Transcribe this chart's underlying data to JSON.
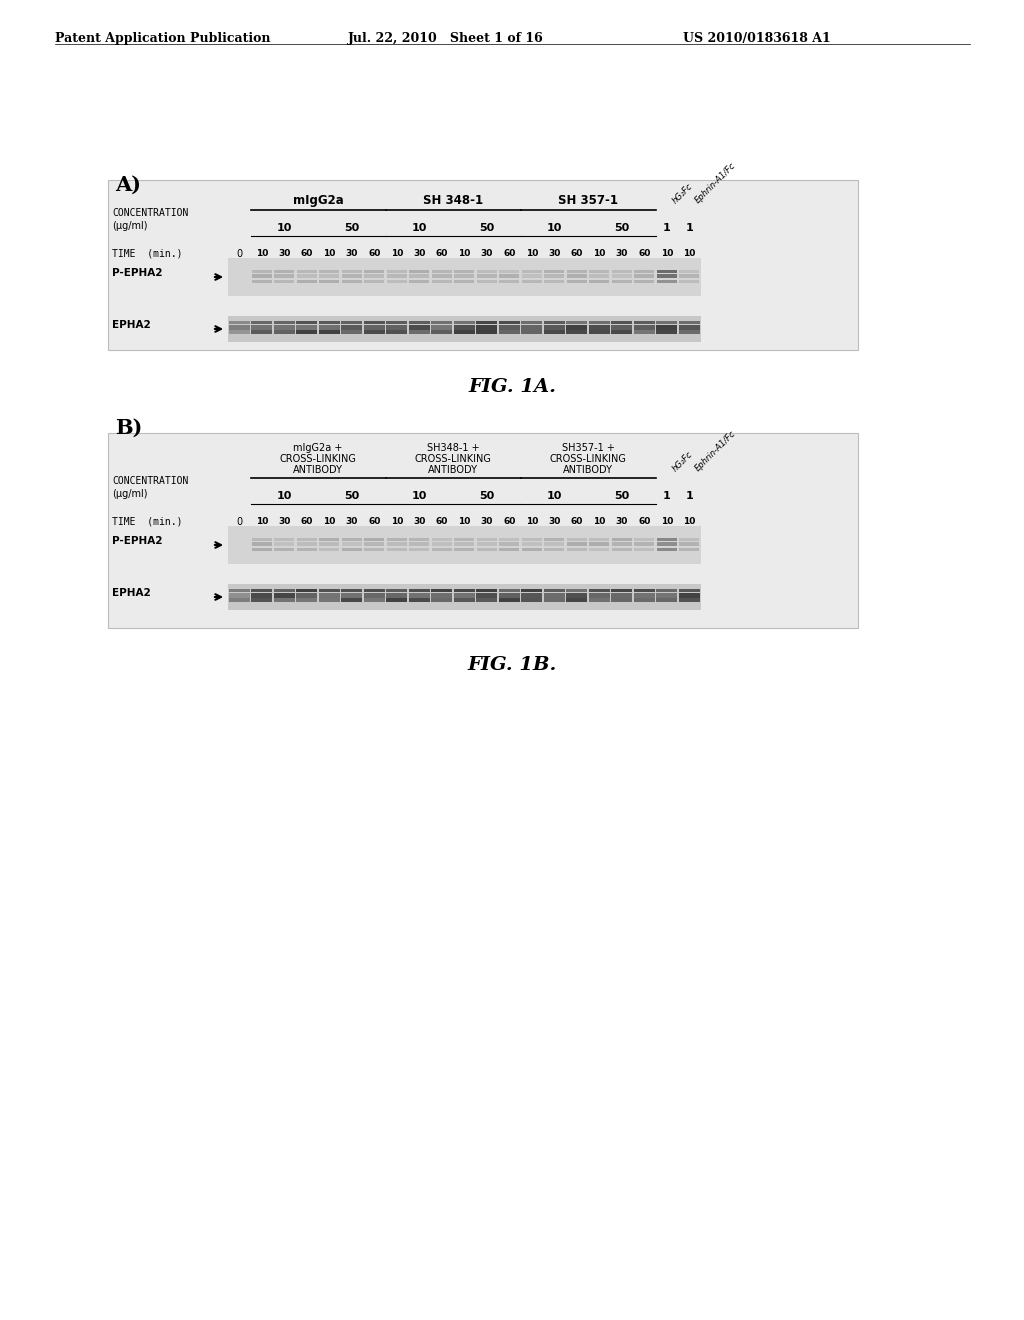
{
  "bg_color": "#ffffff",
  "header_left": "Patent Application Publication",
  "header_mid": "Jul. 22, 2010   Sheet 1 of 16",
  "header_right": "US 2010/0183618 A1",
  "fig_a_label": "A)",
  "fig_b_label": "B)",
  "fig1a_caption": "FIG. 1A.",
  "fig1b_caption": "FIG. 1B.",
  "conc_label": "CONCENTRATION",
  "conc_unit": "(μg/ml)",
  "time_label": "TIME  (min.)",
  "p_epha2_label": "P-EPHA2",
  "epha2_label": "EPHA2",
  "panel_a_group_names": [
    "mIgG2a",
    "SH 348-1",
    "SH 357-1"
  ],
  "panel_b_group_names": [
    "mIgG2a +",
    "SH348-1 +",
    "SH357-1 +"
  ],
  "panel_b_line2": [
    "CROSS-LINKING",
    "CROSS-LINKING",
    "CROSS-LINKING"
  ],
  "panel_b_line3": [
    "ANTIBODY",
    "ANTIBODY",
    "ANTIBODY"
  ],
  "time_points_a": [
    "0",
    "10",
    "30",
    "60",
    "10",
    "30",
    "60",
    "10",
    "30",
    "60",
    "10",
    "30",
    "60",
    "10",
    "30",
    "60",
    "10",
    "30",
    "60",
    "10",
    "10"
  ],
  "time_points_b": [
    "0",
    "10",
    "30",
    "60",
    "10",
    "30",
    "60",
    "10",
    "30",
    "60",
    "10",
    "30",
    "60",
    "10",
    "30",
    "60",
    "10",
    "30",
    "60",
    "10",
    "10"
  ],
  "hgfc_label": "hG₂Fc",
  "ephrin_label": "Ephrin-A1/Fc"
}
